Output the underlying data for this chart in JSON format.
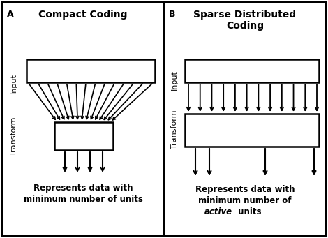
{
  "panel_A_title": "Compact Coding",
  "panel_B_title": "Sparse Distributed\nCoding",
  "label_A": "A",
  "label_B": "B",
  "label_input": "Input",
  "label_transform": "Transform",
  "caption_A_line1": "Represents data with",
  "caption_A_line2": "minimum number of units",
  "caption_B_line1": "Represents data with",
  "caption_B_line2": "minimum number of",
  "caption_B_italic": "active",
  "caption_B_normal": "  units",
  "bg_color": "#ffffff",
  "box_color": "white",
  "line_color": "black",
  "border_color": "#888888"
}
